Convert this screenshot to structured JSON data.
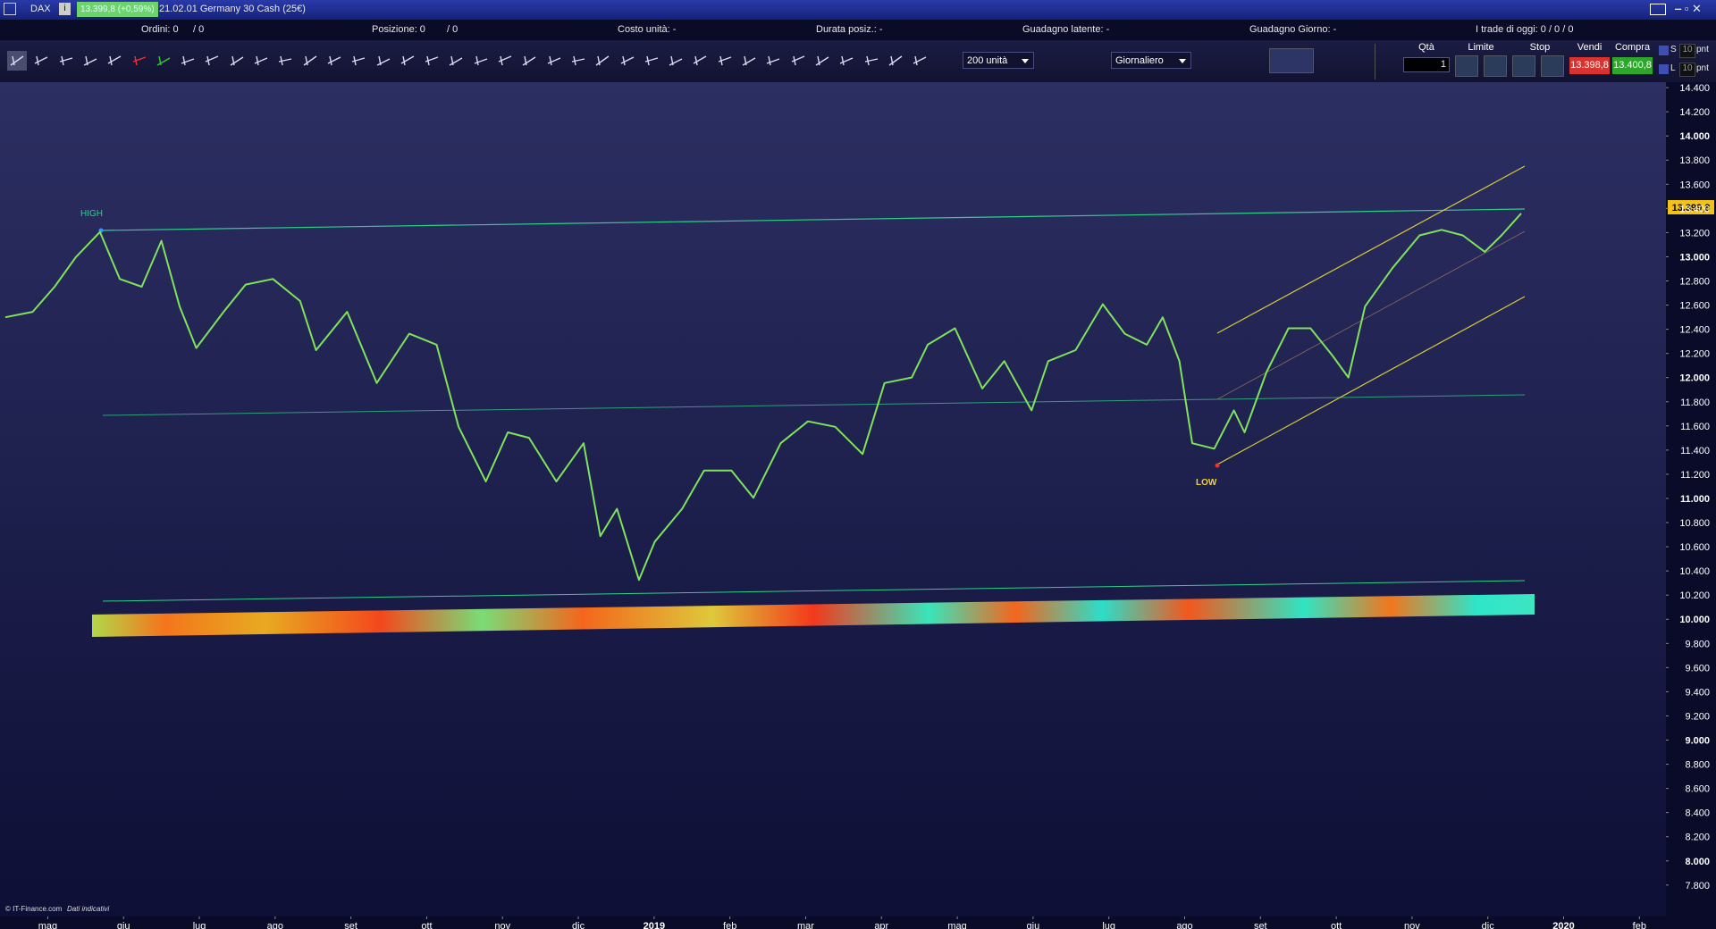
{
  "titlebar": {
    "symbol": "DAX",
    "quote": "13.399,8 (+0,59%)",
    "instrument": "21.02.01 Germany 30 Cash (25€)"
  },
  "infobar": {
    "orders_label": "Ordini: 0",
    "orders_pending": "/ 0",
    "position_label": "Posizione: 0",
    "position_pending": "/ 0",
    "unit_cost": "Costo unità: -",
    "duration": "Durata posiz.: -",
    "latent_gain": "Guadagno latente: -",
    "daily_gain": "Guadagno Giorno: -",
    "trades_today": "I trade di oggi: 0 / 0 / 0"
  },
  "toolbar": {
    "size": "200 unità",
    "period": "Giornaliero",
    "qty_label": "Qtà",
    "qty": "1",
    "limit_label": "Limite",
    "stop_label": "Stop",
    "sell_label": "Vendi",
    "sell_price": "13.398,8",
    "buy_label": "Compra",
    "buy_price": "13.400,8",
    "s_label": "S",
    "s_value": "10",
    "s_unit": "pnt",
    "l_label": "L",
    "l_value": "10",
    "l_unit": "pnt"
  },
  "chart_data": {
    "type": "line",
    "color": "#7fe35c",
    "x": [
      -0.56,
      -0.2,
      0.09,
      0.37,
      0.69,
      0.95,
      1.24,
      1.5,
      1.74,
      1.96,
      2.32,
      2.61,
      2.97,
      3.33,
      3.54,
      3.95,
      4.34,
      4.77,
      5.13,
      5.42,
      5.78,
      6.07,
      6.35,
      6.71,
      7.07,
      7.29,
      7.51,
      7.8,
      8.01,
      8.37,
      8.66,
      9.02,
      9.31,
      9.67,
      10.03,
      10.39,
      10.75,
      11.04,
      11.4,
      11.61,
      11.97,
      12.33,
      12.62,
      12.98,
      13.2,
      13.56,
      13.92,
      14.21,
      14.5,
      14.71,
      14.93,
      15.1,
      15.39,
      15.65,
      15.79,
      16.08,
      16.37,
      16.66,
      16.95,
      17.16,
      17.38,
      17.74,
      18.1,
      18.39,
      18.67,
      18.96,
      19.18,
      19.44
    ],
    "values": [
      12499,
      12544,
      12752,
      12997,
      13205,
      12816,
      12752,
      13132,
      12589,
      12245,
      12544,
      12770,
      12816,
      12634,
      12227,
      12544,
      11955,
      12363,
      12272,
      11593,
      11140,
      11547,
      11502,
      11140,
      11457,
      10688,
      10914,
      10326,
      10643,
      10914,
      11231,
      11231,
      11005,
      11457,
      11638,
      11593,
      11367,
      11955,
      12001,
      12272,
      12408,
      11910,
      12136,
      11729,
      12136,
      12227,
      12607,
      12363,
      12272,
      12499,
      12136,
      11457,
      11412,
      11729,
      11547,
      12046,
      12408,
      12408,
      12182,
      12001,
      12589,
      12906,
      13177,
      13223,
      13177,
      13041,
      13177,
      13359
    ],
    "xlim": [
      -0.63,
      21.35
    ],
    "xticks": [
      {
        "value": 0,
        "label": "mag"
      },
      {
        "value": 1,
        "label": "giu"
      },
      {
        "value": 2,
        "label": "lug"
      },
      {
        "value": 3,
        "label": "ago"
      },
      {
        "value": 4,
        "label": "set"
      },
      {
        "value": 5,
        "label": "ott"
      },
      {
        "value": 6,
        "label": "nov"
      },
      {
        "value": 7,
        "label": "dic"
      },
      {
        "value": 8,
        "label": "2019"
      },
      {
        "value": 9,
        "label": "feb"
      },
      {
        "value": 10,
        "label": "mar"
      },
      {
        "value": 11,
        "label": "apr"
      },
      {
        "value": 12,
        "label": "mag"
      },
      {
        "value": 13,
        "label": "giu"
      },
      {
        "value": 14,
        "label": "lug"
      },
      {
        "value": 15,
        "label": "ago"
      },
      {
        "value": 16,
        "label": "set"
      },
      {
        "value": 17,
        "label": "ott"
      },
      {
        "value": 18,
        "label": "nov"
      },
      {
        "value": 19,
        "label": "dic"
      },
      {
        "value": 20,
        "label": "2020"
      },
      {
        "value": 21,
        "label": "feb"
      }
    ],
    "ylim": [
      7540,
      14445
    ],
    "yticks": [
      {
        "value": 14400,
        "label": "14.400"
      },
      {
        "value": 14200,
        "label": "14.200"
      },
      {
        "value": 14000,
        "label": "14.000"
      },
      {
        "value": 13800,
        "label": "13.800"
      },
      {
        "value": 13600,
        "label": "13.600"
      },
      {
        "value": 13400,
        "label": "13.400"
      },
      {
        "value": 13200,
        "label": "13.200"
      },
      {
        "value": 13000,
        "label": "13.000"
      },
      {
        "value": 12800,
        "label": "12.800"
      },
      {
        "value": 12600,
        "label": "12.600"
      },
      {
        "value": 12400,
        "label": "12.400"
      },
      {
        "value": 12200,
        "label": "12.200"
      },
      {
        "value": 12000,
        "label": "12.000"
      },
      {
        "value": 11800,
        "label": "11.800"
      },
      {
        "value": 11600,
        "label": "11.600"
      },
      {
        "value": 11400,
        "label": "11.400"
      },
      {
        "value": 11200,
        "label": "11.200"
      },
      {
        "value": 11000,
        "label": "11.000"
      },
      {
        "value": 10800,
        "label": "10.800"
      },
      {
        "value": 10600,
        "label": "10.600"
      },
      {
        "value": 10400,
        "label": "10.400"
      },
      {
        "value": 10200,
        "label": "10.200"
      },
      {
        "value": 10000,
        "label": "10.000"
      },
      {
        "value": 9800,
        "label": "9.800"
      },
      {
        "value": 9600,
        "label": "9.600"
      },
      {
        "value": 9400,
        "label": "9.400"
      },
      {
        "value": 9200,
        "label": "9.200"
      },
      {
        "value": 9000,
        "label": "9.000"
      },
      {
        "value": 8800,
        "label": "8.800"
      },
      {
        "value": 8600,
        "label": "8.600"
      },
      {
        "value": 8400,
        "label": "8.400"
      },
      {
        "value": 8200,
        "label": "8.200"
      },
      {
        "value": 8000,
        "label": "8.000"
      },
      {
        "value": 7800,
        "label": "7.800"
      }
    ],
    "last_price_label": "13.399,8",
    "annotations": [
      "HIGH",
      "LOW"
    ]
  },
  "footer": {
    "copyright": "© IT-Finance.com",
    "note": "Dati indicativi"
  }
}
